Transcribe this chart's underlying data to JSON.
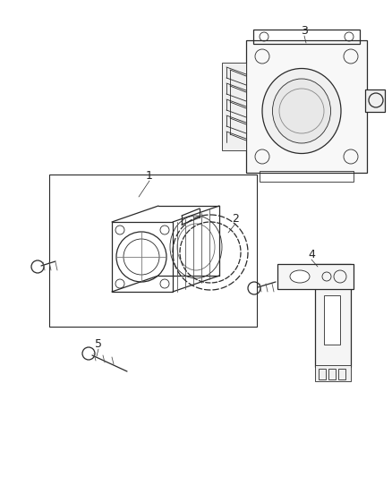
{
  "background_color": "#ffffff",
  "line_color": "#2a2a2a",
  "fig_width": 4.38,
  "fig_height": 5.33,
  "dpi": 100
}
